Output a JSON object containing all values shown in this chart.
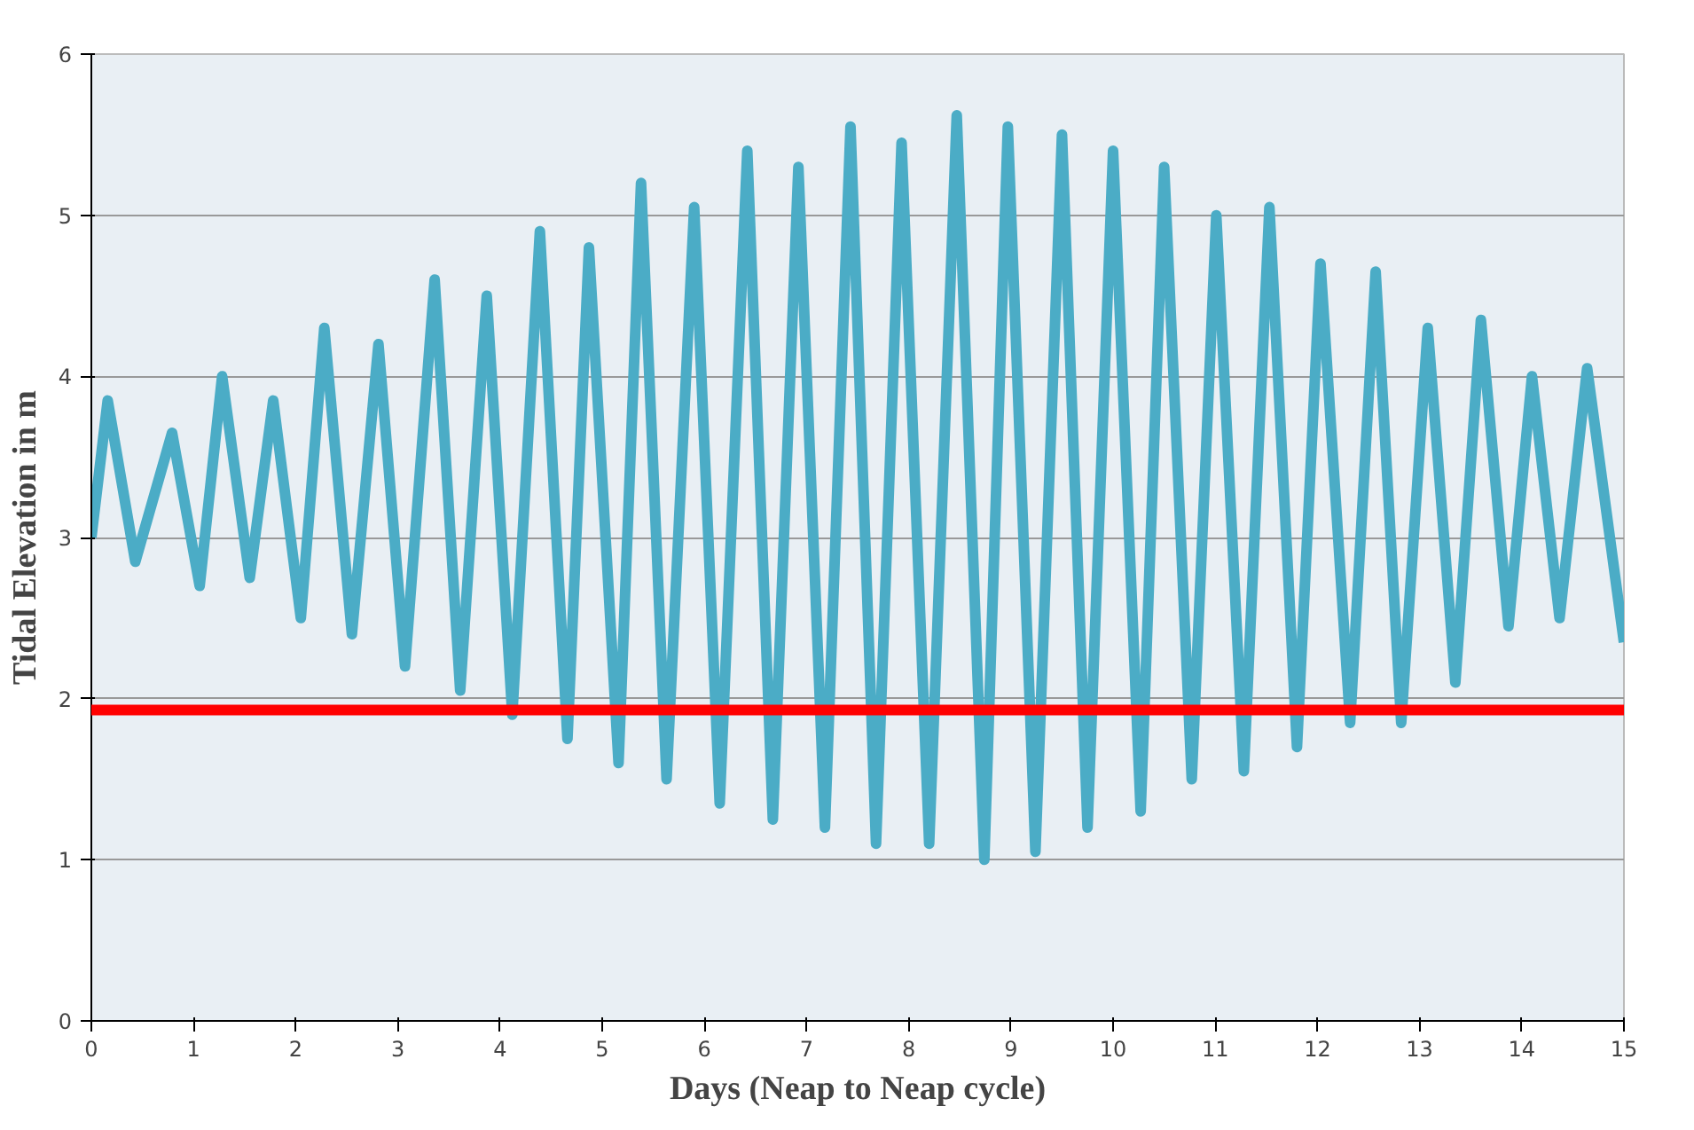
{
  "chart_data": {
    "type": "line",
    "xlabel": "Days (Neap to Neap cycle)",
    "ylabel": "Tidal Elevation in m",
    "series": [
      {
        "color": "#4bacc6",
        "x": [
          0,
          0.16,
          0.43,
          0.79,
          1.06,
          1.28,
          1.55,
          1.78,
          2.05,
          2.28,
          2.55,
          2.81,
          3.07,
          3.36,
          3.61,
          3.87,
          4.12,
          4.39,
          4.66,
          4.87,
          5.16,
          5.38,
          5.63,
          5.9,
          6.15,
          6.42,
          6.67,
          6.92,
          7.18,
          7.43,
          7.68,
          7.93,
          8.2,
          8.47,
          8.74,
          8.97,
          9.24,
          9.5,
          9.75,
          10.0,
          10.27,
          10.5,
          10.77,
          11.01,
          11.28,
          11.53,
          11.8,
          12.03,
          12.32,
          12.57,
          12.82,
          13.08,
          13.35,
          13.6,
          13.87,
          14.1,
          14.37,
          14.64,
          15.0
        ],
        "values": [
          3.0,
          3.85,
          2.85,
          3.65,
          2.7,
          4.0,
          2.75,
          3.85,
          2.5,
          4.3,
          2.4,
          4.2,
          2.2,
          4.6,
          2.05,
          4.5,
          1.9,
          4.9,
          1.75,
          4.8,
          1.6,
          5.2,
          1.5,
          5.05,
          1.35,
          5.4,
          1.25,
          5.3,
          1.2,
          5.55,
          1.1,
          5.45,
          1.1,
          5.62,
          1.0,
          5.55,
          1.05,
          5.5,
          1.2,
          5.4,
          1.3,
          5.3,
          1.5,
          5.0,
          1.55,
          5.05,
          1.7,
          4.7,
          1.85,
          4.65,
          1.85,
          4.3,
          2.1,
          4.35,
          2.45,
          4.0,
          2.5,
          4.05,
          2.35
        ]
      }
    ],
    "xlim": [
      0,
      15
    ],
    "xticks": [
      0,
      1,
      2,
      3,
      4,
      5,
      6,
      7,
      8,
      9,
      10,
      11,
      12,
      13,
      14,
      15
    ],
    "ylim": [
      0,
      6
    ],
    "yticks": [
      0,
      1,
      2,
      3,
      4,
      5,
      6
    ],
    "ref_lines": [
      {
        "axis": "y",
        "value": 1.93,
        "color": "#ff0000"
      }
    ],
    "grid": "y",
    "marker": "none",
    "line_style": "solid"
  }
}
